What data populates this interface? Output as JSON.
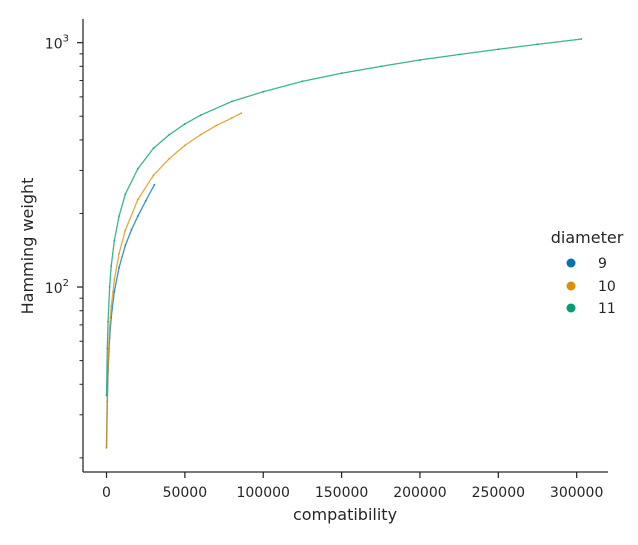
{
  "chart_data": {
    "type": "scatter",
    "xlabel": "compatibility",
    "ylabel": "Hamming weight",
    "y_scale": "log",
    "xlim": [
      -15000,
      320000
    ],
    "ylim": [
      17.5,
      1250
    ],
    "x_ticks": [
      0,
      50000,
      100000,
      150000,
      200000,
      250000,
      300000
    ],
    "x_tick_labels": [
      "0",
      "50000",
      "100000",
      "150000",
      "200000",
      "250000",
      "300000"
    ],
    "y_major_ticks": [
      100,
      1000
    ],
    "y_major_base": "10",
    "y_major_exponents": [
      "2",
      "3"
    ],
    "y_minor_ticks": [
      20,
      30,
      40,
      50,
      60,
      70,
      80,
      90,
      200,
      300,
      400,
      500,
      600,
      700,
      800,
      900
    ],
    "grid": false,
    "legend": {
      "title": "diameter",
      "placement": "right",
      "entries": [
        "9",
        "10",
        "11"
      ]
    },
    "series": [
      {
        "name": "9",
        "color": "#0173b2",
        "points": [
          [
            0,
            22
          ],
          [
            500,
            34
          ],
          [
            1000,
            45
          ],
          [
            2000,
            62
          ],
          [
            3000,
            75
          ],
          [
            5000,
            96
          ],
          [
            8000,
            120
          ],
          [
            12000,
            148
          ],
          [
            16000,
            172
          ],
          [
            20000,
            195
          ],
          [
            25000,
            225
          ],
          [
            30500,
            262
          ]
        ]
      },
      {
        "name": "10",
        "color": "#de8f05",
        "points": [
          [
            0,
            22
          ],
          [
            500,
            36
          ],
          [
            1000,
            48
          ],
          [
            2000,
            68
          ],
          [
            3000,
            83
          ],
          [
            5000,
            107
          ],
          [
            8000,
            137
          ],
          [
            12000,
            171
          ],
          [
            20000,
            228
          ],
          [
            30000,
            287
          ],
          [
            40000,
            335
          ],
          [
            50000,
            380
          ],
          [
            60000,
            420
          ],
          [
            70000,
            458
          ],
          [
            80000,
            492
          ],
          [
            86000,
            515
          ]
        ]
      },
      {
        "name": "11",
        "color": "#029e73",
        "points": [
          [
            0,
            36
          ],
          [
            500,
            56
          ],
          [
            1000,
            72
          ],
          [
            2000,
            100
          ],
          [
            3000,
            122
          ],
          [
            5000,
            155
          ],
          [
            8000,
            195
          ],
          [
            12000,
            240
          ],
          [
            20000,
            305
          ],
          [
            30000,
            370
          ],
          [
            40000,
            420
          ],
          [
            50000,
            465
          ],
          [
            60000,
            505
          ],
          [
            80000,
            575
          ],
          [
            100000,
            630
          ],
          [
            125000,
            695
          ],
          [
            150000,
            750
          ],
          [
            175000,
            800
          ],
          [
            200000,
            850
          ],
          [
            225000,
            895
          ],
          [
            250000,
            940
          ],
          [
            275000,
            985
          ],
          [
            303000,
            1035
          ]
        ]
      }
    ]
  }
}
